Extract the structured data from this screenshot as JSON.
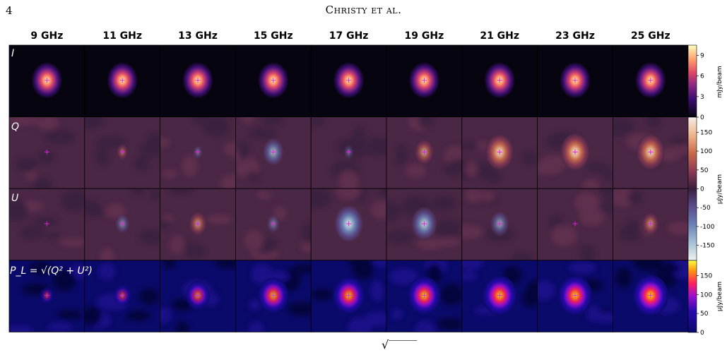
{
  "page": {
    "number": "4",
    "running_head": "Christy et al."
  },
  "figure": {
    "frequencies": [
      "9 GHz",
      "11 GHz",
      "13 GHz",
      "15 GHz",
      "17 GHz",
      "19 GHz",
      "21 GHz",
      "23 GHz",
      "25 GHz"
    ],
    "rows": [
      {
        "label": "I",
        "cmap": "magma"
      },
      {
        "label": "Q",
        "cmap": "twilight"
      },
      {
        "label": "U",
        "cmap": "twilight"
      },
      {
        "label": "P_L = √(Q² + U²)",
        "cmap": "gnuplot2"
      }
    ],
    "colorbar_I": {
      "ticks": [
        "9",
        "6",
        "3",
        "0"
      ],
      "label": "mJy/beam"
    },
    "colorbar_QU": {
      "ticks": [
        "150",
        "100",
        "50",
        "0",
        "-50",
        "-100",
        "-150"
      ],
      "label": "μJy/beam"
    },
    "colorbar_P": {
      "ticks": [
        "150",
        "100",
        "50",
        "0"
      ],
      "label": "μJy/beam"
    },
    "bottom_fragment": "√‾‾‾‾‾"
  },
  "panels": {
    "I": [
      1,
      1,
      1,
      1,
      1,
      1,
      1,
      1,
      1
    ],
    "Q": [
      0.0,
      0.12,
      -0.05,
      -0.55,
      -0.05,
      0.45,
      0.85,
      0.9,
      0.85
    ],
    "U": [
      0.0,
      -0.25,
      0.4,
      -0.2,
      -0.9,
      -0.75,
      -0.45,
      0.0,
      0.35
    ],
    "P": [
      0.1,
      0.25,
      0.5,
      0.75,
      0.8,
      0.85,
      0.9,
      0.9,
      0.95
    ]
  },
  "colors": {
    "magma_bg": "#06040f",
    "qu_bg": "#4a2745",
    "p_bg": "#0a0a6a",
    "marker": "#e01de0"
  }
}
